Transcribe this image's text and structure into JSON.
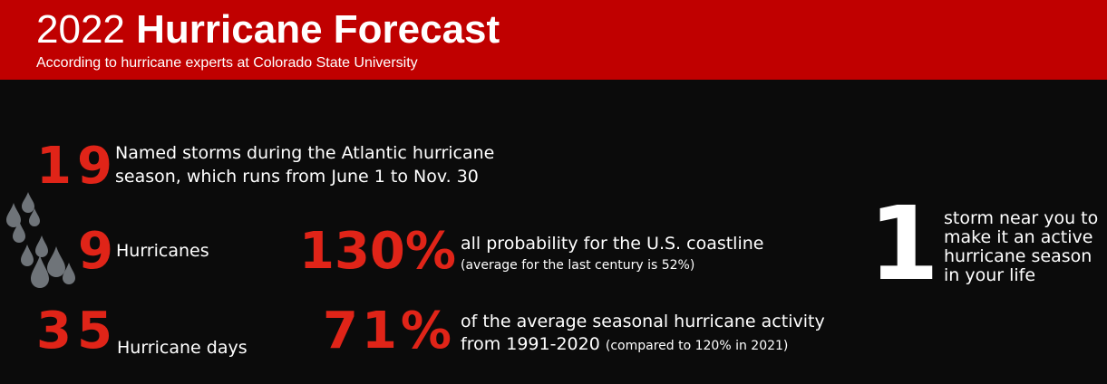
{
  "header": {
    "title_year": "2022",
    "title_rest": "Hurricane Forecast",
    "subtitle": "According to hurricane experts at Colorado State University"
  },
  "stats": {
    "named_storms": {
      "value": "19",
      "line1": "Named storms during the Atlantic hurricane",
      "line2": "season, which runs from June 1 to Nov. 30"
    },
    "hurricanes": {
      "value": "9",
      "label": "Hurricanes"
    },
    "hurricane_days": {
      "value": "35",
      "label": "Hurricane days"
    },
    "coastline_probability": {
      "value": "130%",
      "line1": "all probability for the U.S. coastline",
      "note": "(average for the last century is 52%)"
    },
    "seasonal_activity": {
      "value": "71%",
      "line1": "of the average seasonal hurricane activity",
      "line2": "from 1991-2020",
      "note": "(compared to 120% in 2021)"
    },
    "storm_near_you": {
      "value": "1",
      "lines": [
        "storm near you to",
        "make it an active",
        "hurricane season",
        "in your life"
      ]
    }
  },
  "icons": {
    "raindrops": "raindrops-icon"
  },
  "colors": {
    "header_red": "#c00000",
    "accent_red": "#e02418",
    "background": "#0b0b0b",
    "drop_gray": "#6f7479"
  }
}
